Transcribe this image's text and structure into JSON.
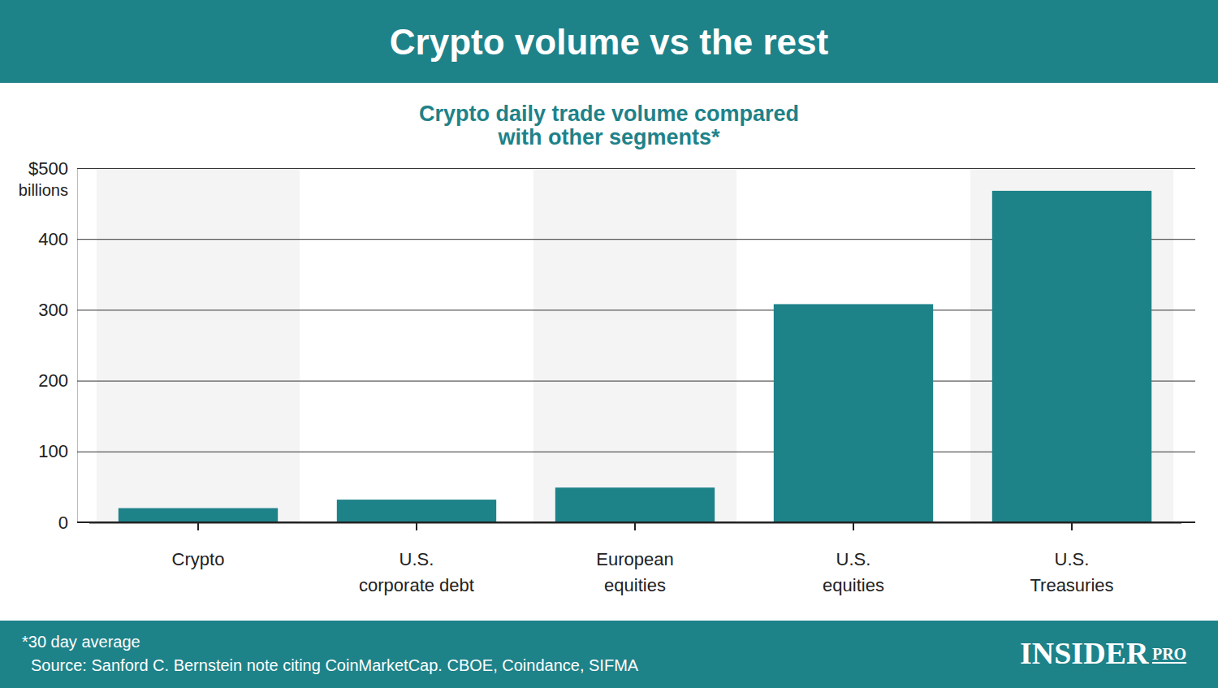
{
  "chart_data": {
    "type": "bar",
    "title": "Crypto volume vs the rest",
    "subtitle": "Crypto daily trade volume compared with other segments*",
    "ylabel": "billions",
    "categories": [
      "Crypto",
      "U.S. corporate debt",
      "European equities",
      "U.S. equities",
      "U.S. Treasuries"
    ],
    "values": [
      20,
      32,
      49,
      308,
      468
    ],
    "color": "#1e8289",
    "ylim": [
      0,
      500
    ],
    "yticks": [
      0,
      100,
      200,
      300,
      400,
      {
        "value": 500,
        "label": "$500"
      }
    ],
    "grid": true,
    "footnote": "*30 day average",
    "source": "Source: Sanford C. Bernstein note citing CoinMarketCap. CBOE, Coindance, SIFMA",
    "brand": "INSIDER",
    "brand_tag": "PRO"
  }
}
